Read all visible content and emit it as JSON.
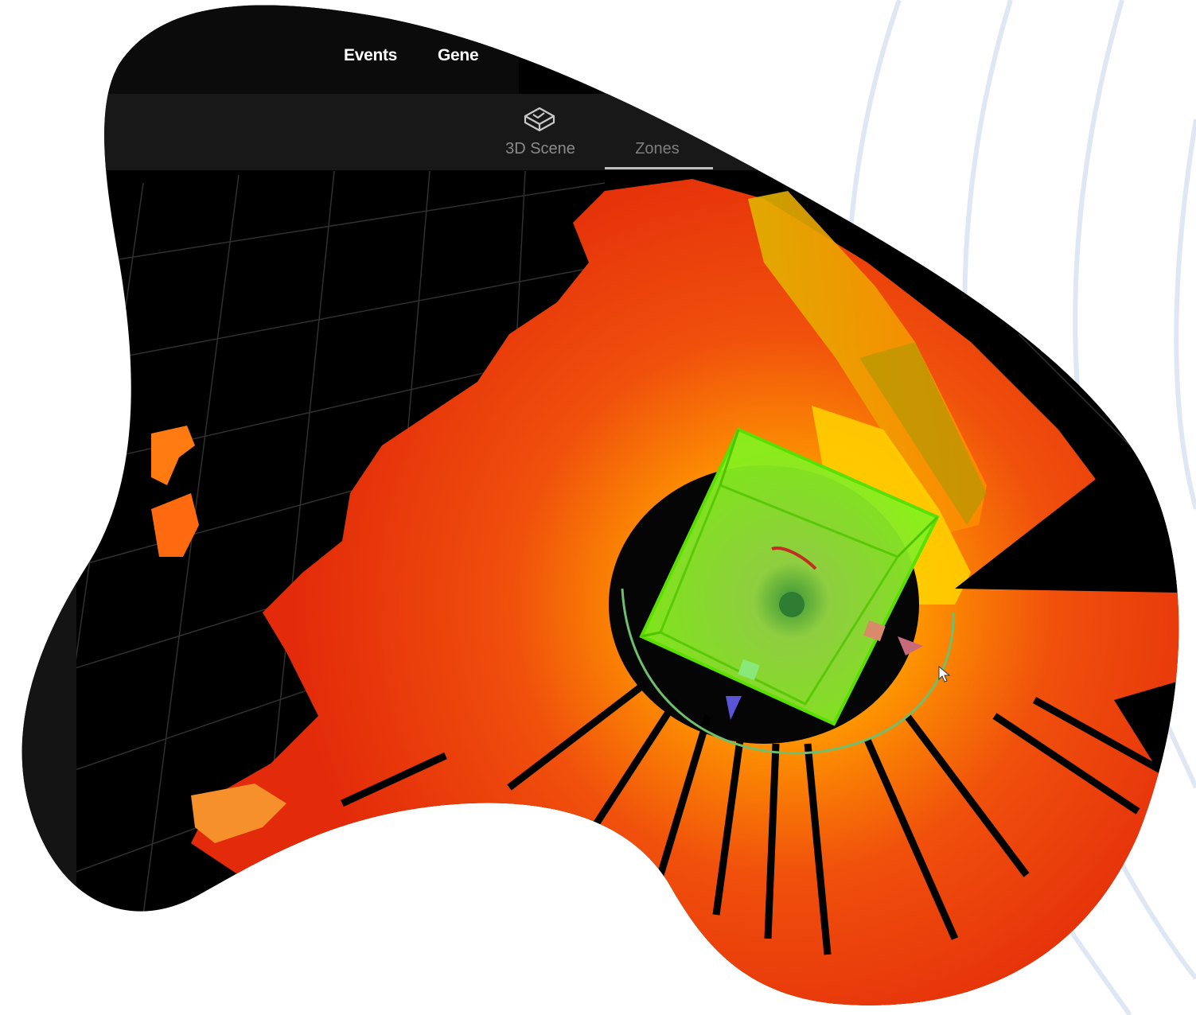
{
  "top_nav": {
    "items": [
      {
        "label": "Events"
      },
      {
        "label": "General"
      }
    ]
  },
  "view_tabs": {
    "items": [
      {
        "label": "3D Scene",
        "icon": "3d-box-icon"
      },
      {
        "label": "Zones",
        "active": true
      }
    ]
  },
  "colors": {
    "background_arc": "#dfe7f4",
    "app_bg": "#000000",
    "nav_bar": "#0b0b0b",
    "toolbar": "#181818",
    "grid": "#3a3a3a",
    "pointcloud_near": "#ffd000",
    "pointcloud_far": "#e8320a",
    "zone_fill": "#7ef21e",
    "zone_edge": "#5fe000",
    "ring": "#6ab46a"
  },
  "viewport": {
    "mode": "3D point cloud with zone box",
    "selected_zone": "zone-box"
  }
}
